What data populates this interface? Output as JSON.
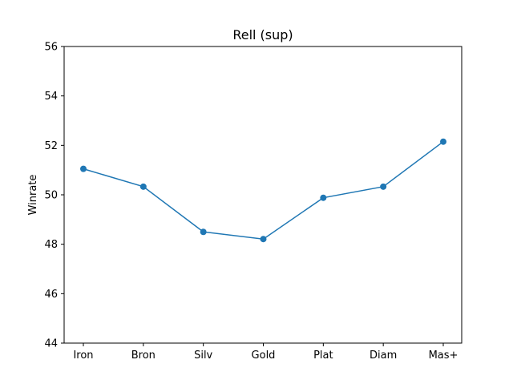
{
  "chart_data": {
    "type": "line",
    "title": "Rell (sup)",
    "xlabel": "",
    "ylabel": "Winrate",
    "categories": [
      "Iron",
      "Bron",
      "Silv",
      "Gold",
      "Plat",
      "Diam",
      "Mas+"
    ],
    "series": [
      {
        "values": [
          51.05,
          50.33,
          48.5,
          48.21,
          49.88,
          50.33,
          52.15
        ],
        "color": "#1f77b4",
        "marker": "circle"
      }
    ],
    "ylim": [
      44,
      56
    ],
    "yticks": [
      44,
      46,
      48,
      50,
      52,
      54,
      56
    ],
    "grid": false,
    "legend": "none"
  }
}
